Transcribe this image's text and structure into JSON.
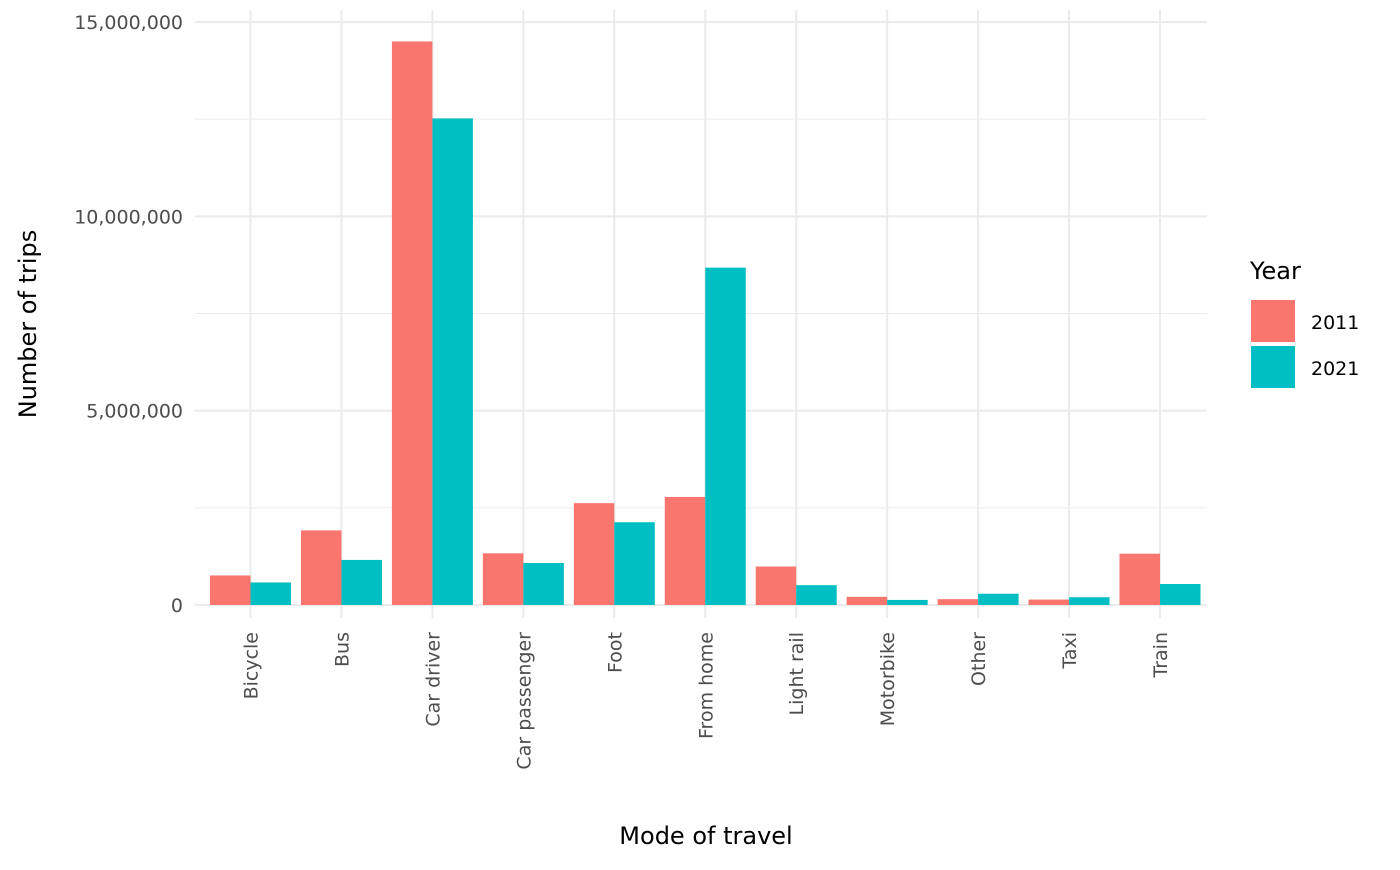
{
  "chart_data": {
    "type": "bar",
    "title": "",
    "xlabel": "Mode of travel",
    "ylabel": "Number of trips",
    "categories": [
      "Bicycle",
      "Bus",
      "Car driver",
      "Car passenger",
      "Foot",
      "From home",
      "Light rail",
      "Motorbike",
      "Other",
      "Taxi",
      "Train"
    ],
    "series": [
      {
        "name": "2011",
        "color": "#F8766D",
        "values": [
          760000,
          1920000,
          14500000,
          1330000,
          2620000,
          2780000,
          990000,
          210000,
          150000,
          140000,
          1320000
        ]
      },
      {
        "name": "2021",
        "color": "#00BFC4",
        "values": [
          580000,
          1160000,
          12520000,
          1080000,
          2130000,
          8680000,
          510000,
          130000,
          290000,
          200000,
          540000
        ]
      }
    ],
    "ylim": [
      0,
      15000000
    ],
    "yticks": [
      0,
      5000000,
      10000000,
      15000000
    ],
    "ytick_labels": [
      "0",
      "5,000,000",
      "10,000,000",
      "15,000,000"
    ],
    "grid": true,
    "legend": {
      "title": "Year",
      "position": "right"
    }
  }
}
